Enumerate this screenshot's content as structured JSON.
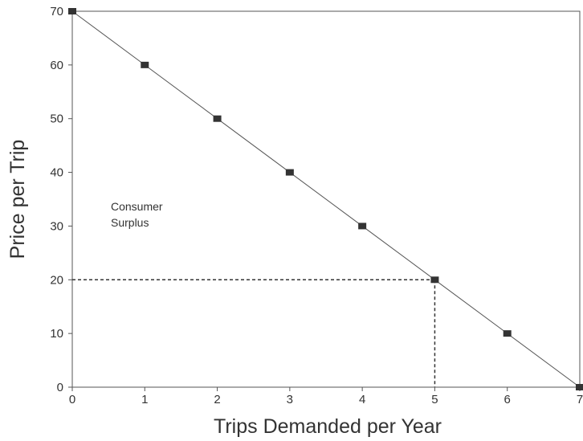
{
  "chart_data": {
    "type": "line",
    "xlabel": "Trips Demanded per Year",
    "ylabel": "Price per Trip",
    "xlim": [
      0,
      7
    ],
    "ylim": [
      0,
      70
    ],
    "x_ticks": [
      "0",
      "1",
      "2",
      "3",
      "4",
      "5",
      "6",
      "7"
    ],
    "y_ticks": [
      "0",
      "10",
      "20",
      "30",
      "40",
      "50",
      "60",
      "70"
    ],
    "series": [
      {
        "x": [
          0,
          1,
          2,
          3,
          4,
          5,
          6,
          7
        ],
        "y": [
          70,
          60,
          50,
          40,
          30,
          20,
          10,
          0
        ]
      }
    ],
    "reference_point": {
      "x": 5,
      "y": 20
    },
    "annotation": {
      "line1": "Consumer",
      "line2": "Surplus"
    },
    "grid": false,
    "colors": {
      "line": "#555555",
      "marker": "#333333",
      "dashed": "#333333"
    }
  }
}
